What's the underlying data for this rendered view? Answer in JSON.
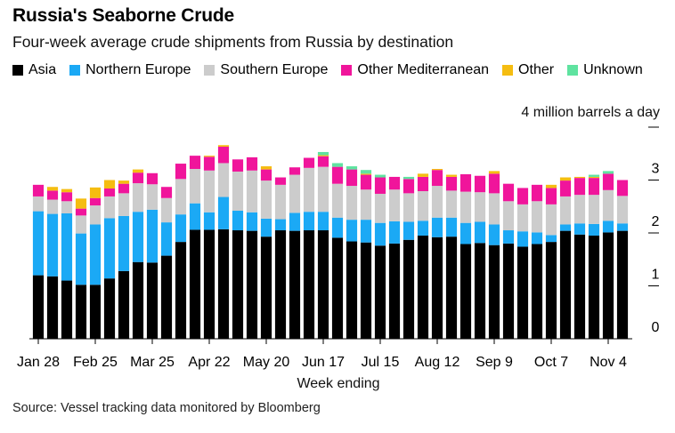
{
  "header": {
    "title": "Russia's Seaborne Crude",
    "subtitle": "Four-week average crude shipments from Russia by destination"
  },
  "legend": [
    {
      "label": "Asia",
      "color": "#000000"
    },
    {
      "label": "Northern Europe",
      "color": "#1ba9f5"
    },
    {
      "label": "Southern Europe",
      "color": "#cccccc"
    },
    {
      "label": "Other Mediterranean",
      "color": "#f0159b"
    },
    {
      "label": "Other",
      "color": "#f5bd11"
    },
    {
      "label": "Unknown",
      "color": "#5fe3a0"
    }
  ],
  "source": "Source: Vessel tracking data monitored by Bloomberg",
  "chart_data": {
    "type": "bar",
    "stacked": true,
    "title": "Russia's Seaborne Crude",
    "subtitle": "Four-week average crude shipments from Russia by destination",
    "xlabel": "Week ending",
    "ylabel": "4 million barrels a day",
    "ylim": [
      0,
      4
    ],
    "yticks": [
      0,
      1,
      2,
      3
    ],
    "xtick_labels": [
      "Jan 28",
      "Feb 25",
      "Mar 25",
      "Apr 22",
      "May 20",
      "Jun 17",
      "Jul 15",
      "Aug 12",
      "Sep 9",
      "Oct 7",
      "Nov 4"
    ],
    "xtick_bar_index": [
      0,
      4,
      8,
      12,
      16,
      20,
      24,
      28,
      32,
      36,
      40
    ],
    "legend_position": "top",
    "grid": false,
    "n_bars": 42,
    "series": [
      {
        "name": "Asia",
        "color": "#000000",
        "values": [
          1.2,
          1.18,
          1.1,
          1.02,
          1.02,
          1.14,
          1.28,
          1.45,
          1.44,
          1.57,
          1.83,
          2.06,
          2.06,
          2.07,
          2.05,
          2.04,
          1.93,
          2.05,
          2.04,
          2.05,
          2.05,
          1.91,
          1.84,
          1.82,
          1.76,
          1.8,
          1.87,
          1.95,
          1.92,
          1.93,
          1.79,
          1.81,
          1.77,
          1.8,
          1.74,
          1.79,
          1.83,
          2.04,
          1.97,
          1.95,
          2.01,
          2.04
        ]
      },
      {
        "name": "Northern Europe",
        "color": "#1ba9f5",
        "values": [
          1.21,
          1.18,
          1.27,
          0.97,
          1.14,
          1.14,
          1.04,
          0.95,
          1.0,
          0.63,
          0.52,
          0.5,
          0.33,
          0.61,
          0.37,
          0.35,
          0.34,
          0.21,
          0.34,
          0.35,
          0.35,
          0.38,
          0.41,
          0.43,
          0.43,
          0.42,
          0.34,
          0.28,
          0.37,
          0.36,
          0.4,
          0.4,
          0.39,
          0.25,
          0.29,
          0.22,
          0.13,
          0.12,
          0.21,
          0.22,
          0.22,
          0.14
        ]
      },
      {
        "name": "Southern Europe",
        "color": "#cccccc",
        "values": [
          0.28,
          0.27,
          0.23,
          0.34,
          0.36,
          0.41,
          0.43,
          0.54,
          0.48,
          0.46,
          0.67,
          0.65,
          0.79,
          0.64,
          0.74,
          0.79,
          0.72,
          0.65,
          0.72,
          0.83,
          0.85,
          0.64,
          0.64,
          0.57,
          0.55,
          0.6,
          0.54,
          0.56,
          0.6,
          0.51,
          0.59,
          0.56,
          0.59,
          0.55,
          0.51,
          0.59,
          0.58,
          0.53,
          0.54,
          0.55,
          0.58,
          0.52
        ]
      },
      {
        "name": "Other Mediterranean",
        "color": "#f0159b",
        "values": [
          0.22,
          0.17,
          0.17,
          0.13,
          0.14,
          0.15,
          0.18,
          0.2,
          0.21,
          0.21,
          0.29,
          0.25,
          0.26,
          0.31,
          0.23,
          0.25,
          0.21,
          0.14,
          0.14,
          0.19,
          0.2,
          0.32,
          0.31,
          0.28,
          0.31,
          0.24,
          0.27,
          0.27,
          0.3,
          0.26,
          0.33,
          0.31,
          0.37,
          0.33,
          0.31,
          0.31,
          0.31,
          0.3,
          0.32,
          0.32,
          0.31,
          0.3
        ]
      },
      {
        "name": "Other",
        "color": "#f5bd11",
        "values": [
          0.0,
          0.07,
          0.06,
          0.19,
          0.2,
          0.16,
          0.06,
          0.06,
          0.0,
          0.0,
          0.0,
          0.0,
          0.02,
          0.03,
          0.0,
          0.0,
          0.06,
          0.0,
          0.0,
          0.0,
          0.02,
          0.0,
          0.0,
          0.02,
          0.0,
          0.0,
          0.0,
          0.06,
          0.02,
          0.04,
          0.0,
          0.0,
          0.05,
          0.0,
          0.0,
          0.0,
          0.06,
          0.06,
          0.02,
          0.02,
          0.0,
          0.0
        ]
      },
      {
        "name": "Unknown",
        "color": "#5fe3a0",
        "values": [
          0.0,
          0.0,
          0.0,
          0.0,
          0.0,
          0.0,
          0.0,
          0.0,
          0.0,
          0.0,
          0.0,
          0.0,
          0.0,
          0.0,
          0.0,
          0.0,
          0.0,
          0.0,
          0.0,
          0.0,
          0.06,
          0.07,
          0.06,
          0.07,
          0.05,
          0.0,
          0.04,
          0.0,
          0.0,
          0.0,
          0.0,
          0.0,
          0.0,
          0.0,
          0.0,
          0.0,
          0.0,
          0.0,
          0.0,
          0.04,
          0.05,
          0.0
        ]
      }
    ]
  }
}
